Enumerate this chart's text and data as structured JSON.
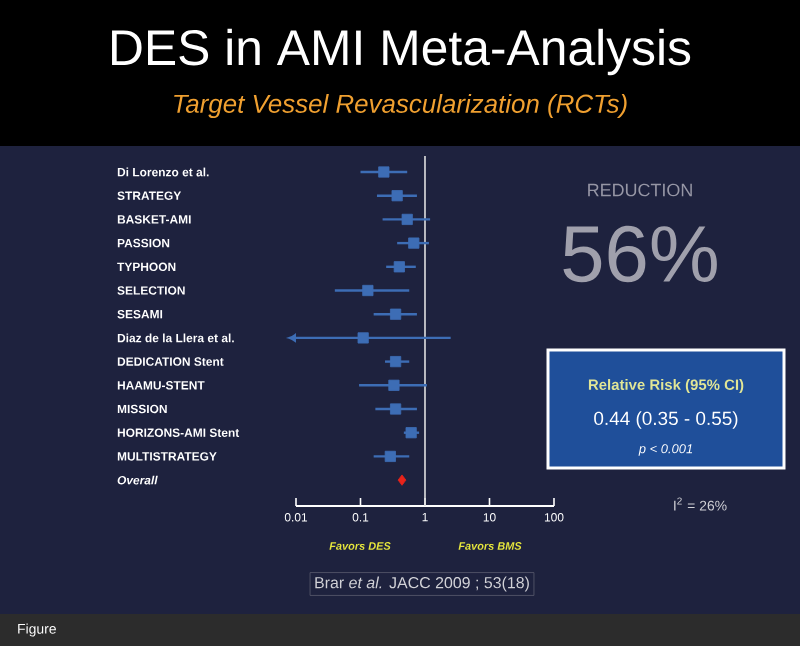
{
  "chart_data": {
    "type": "scatter",
    "orientation": "horizontal",
    "title": "DES in AMI Meta-Analysis",
    "subtitle": "Target Vessel Revascularization (RCTs)",
    "categories": [
      "Di Lorenzo et al.",
      "STRATEGY",
      "BASKET-AMI",
      "PASSION",
      "TYPHOON",
      "SELECTION",
      "SESAMI",
      "Diaz de la Llera et al.",
      "DEDICATION Stent",
      "HAAMU-STENT",
      "MISSION",
      "HORIZONS-AMI Stent",
      "MULTISTRATEGY",
      "Overall"
    ],
    "series": [
      {
        "color": "#3d6db5",
        "marker": "square",
        "values": [
          0.23,
          0.37,
          0.53,
          0.67,
          0.4,
          0.13,
          0.35,
          0.11,
          0.35,
          0.33,
          0.35,
          0.61,
          0.29,
          null
        ],
        "errors": [
          [
            0.1,
            0.53
          ],
          [
            0.18,
            0.75
          ],
          [
            0.22,
            1.2
          ],
          [
            0.37,
            1.15
          ],
          [
            0.25,
            0.72
          ],
          [
            0.04,
            0.57
          ],
          [
            0.16,
            0.75
          ],
          [
            0.01,
            2.5
          ],
          [
            0.24,
            0.57
          ],
          [
            0.095,
            1.07
          ],
          [
            0.17,
            0.75
          ],
          [
            0.47,
            0.81
          ],
          [
            0.16,
            0.57
          ],
          null
        ]
      },
      {
        "color": "#e8231a",
        "marker": "diamond",
        "values": [
          null,
          null,
          null,
          null,
          null,
          null,
          null,
          null,
          null,
          null,
          null,
          null,
          null,
          0.44
        ]
      }
    ],
    "log": "x",
    "xlim": [
      0.01,
      100
    ],
    "xticks": [
      0.01,
      0.1,
      1,
      10,
      100
    ],
    "ref_lines": [
      {
        "axis": "x",
        "value": 1,
        "color": "#e0e0e0"
      }
    ],
    "grid": false,
    "annotations": [
      "Favors DES",
      "Favors BMS",
      "REDUCTION",
      "56%",
      "Relative Risk (95% CI)",
      "0.44  (0.35 - 0.55)",
      "p < 0.001",
      "I$^{2}$ = 26%",
      "Brar *et al.* JACC 2009 ; 53(18)",
      "Figure"
    ]
  }
}
